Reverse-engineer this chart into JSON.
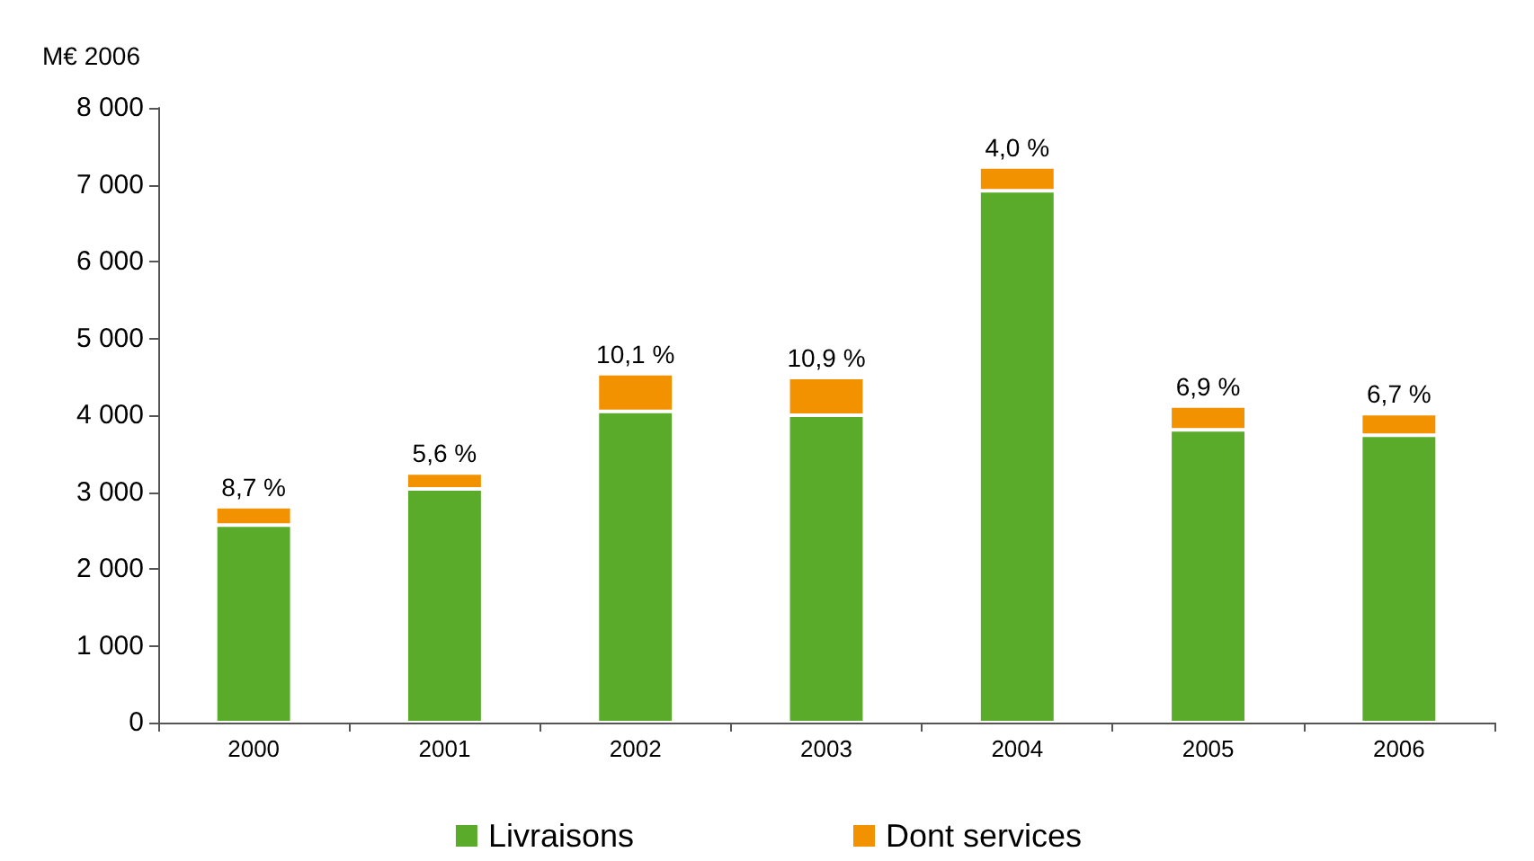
{
  "chart_data": {
    "type": "bar",
    "stacked": true,
    "ylabel": "M€ 2006",
    "categories": [
      "2000",
      "2001",
      "2002",
      "2003",
      "2004",
      "2005",
      "2006"
    ],
    "series": [
      {
        "name": "Livraisons",
        "color": "#5aab2a",
        "values": [
          2570,
          3040,
          4050,
          4000,
          6920,
          3810,
          3740
        ]
      },
      {
        "name": "Dont services",
        "color": "#f39200",
        "values": [
          240,
          210,
          490,
          490,
          310,
          310,
          280
        ]
      }
    ],
    "ylim": [
      0,
      8000
    ],
    "yticks": [
      0,
      {
        "value": 1000,
        "label": "1 000"
      },
      {
        "value": 2000,
        "label": "2 000"
      },
      {
        "value": 3000,
        "label": "3 000"
      },
      {
        "value": 4000,
        "label": "4 000"
      },
      {
        "value": 5000,
        "label": "5 000"
      },
      {
        "value": 6000,
        "label": "6 000"
      },
      {
        "value": 7000,
        "label": "7 000"
      },
      {
        "value": 8000,
        "label": "8 000"
      }
    ],
    "annotations": [
      {
        "text": "8,7 %",
        "x": "2000",
        "y": 2810
      },
      {
        "text": "5,6 %",
        "x": "2001",
        "y": 3250
      },
      {
        "text": "10,1 %",
        "x": "2002",
        "y": 4540
      },
      {
        "text": "10,9 %",
        "x": "2003",
        "y": 4490
      },
      {
        "text": "4,0 %",
        "x": "2004",
        "y": 7230
      },
      {
        "text": "6,9 %",
        "x": "2005",
        "y": 4120
      },
      {
        "text": "6,7 %",
        "x": "2006",
        "y": 4020
      }
    ],
    "grid": false,
    "legend": "bottom"
  }
}
